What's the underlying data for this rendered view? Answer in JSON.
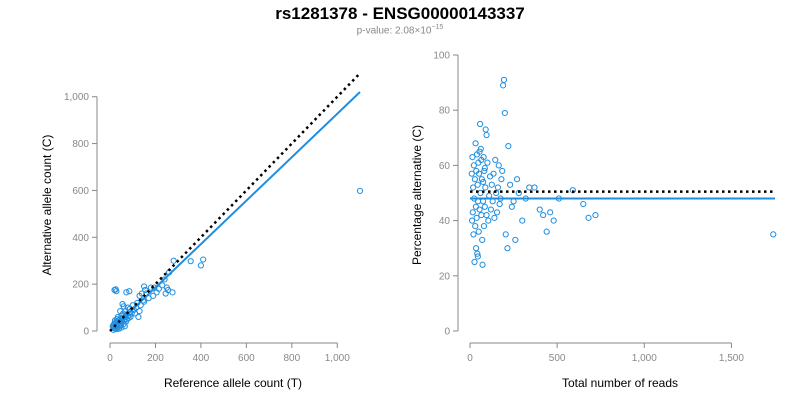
{
  "header": {
    "title": "rs1281378 - ENSG00000143337",
    "pvalue_prefix": "p-value: 2.08×10",
    "pvalue_exponent": "−15"
  },
  "colors": {
    "points": "#1f8ee0",
    "fit_line": "#1f8ee0",
    "reference_line": "#000000",
    "axis": "#888888"
  },
  "chart_data": [
    {
      "type": "scatter",
      "xlabel": "Reference allele count (T)",
      "ylabel": "Alternative allele count (C)",
      "xlim": [
        0,
        1100
      ],
      "ylim": [
        0,
        1050
      ],
      "xticks": [
        0,
        200,
        400,
        600,
        800,
        1000
      ],
      "xtick_labels": [
        "0",
        "200",
        "400",
        "600",
        "800",
        "1,000"
      ],
      "yticks": [
        0,
        200,
        400,
        600,
        800,
        1000
      ],
      "ytick_labels": [
        "0",
        "200",
        "400",
        "600",
        "800",
        "1,000"
      ],
      "grid": false,
      "fit_line": [
        [
          0,
          0
        ],
        [
          1100,
          1020
        ]
      ],
      "reference_line": [
        [
          0,
          0
        ],
        [
          1100,
          1100
        ]
      ],
      "points": [
        [
          1100,
          598
        ],
        [
          410,
          305
        ],
        [
          400,
          280
        ],
        [
          355,
          298
        ],
        [
          280,
          300
        ],
        [
          275,
          165
        ],
        [
          260,
          250
        ],
        [
          255,
          175
        ],
        [
          250,
          185
        ],
        [
          245,
          160
        ],
        [
          240,
          220
        ],
        [
          230,
          195
        ],
        [
          215,
          180
        ],
        [
          205,
          165
        ],
        [
          195,
          185
        ],
        [
          190,
          150
        ],
        [
          180,
          185
        ],
        [
          170,
          140
        ],
        [
          160,
          160
        ],
        [
          155,
          175
        ],
        [
          150,
          190
        ],
        [
          150,
          125
        ],
        [
          145,
          130
        ],
        [
          140,
          160
        ],
        [
          135,
          110
        ],
        [
          130,
          150
        ],
        [
          130,
          85
        ],
        [
          125,
          60
        ],
        [
          120,
          120
        ],
        [
          115,
          100
        ],
        [
          110,
          75
        ],
        [
          105,
          90
        ],
        [
          100,
          110
        ],
        [
          95,
          75
        ],
        [
          90,
          60
        ],
        [
          88,
          95
        ],
        [
          85,
          80
        ],
        [
          82,
          55
        ],
        [
          80,
          65
        ],
        [
          78,
          100
        ],
        [
          75,
          50
        ],
        [
          72,
          70
        ],
        [
          70,
          40
        ],
        [
          68,
          85
        ],
        [
          65,
          60
        ],
        [
          62,
          45
        ],
        [
          60,
          30
        ],
        [
          58,
          75
        ],
        [
          55,
          55
        ],
        [
          52,
          40
        ],
        [
          50,
          65
        ],
        [
          48,
          25
        ],
        [
          45,
          50
        ],
        [
          42,
          35
        ],
        [
          40,
          20
        ],
        [
          38,
          45
        ],
        [
          35,
          30
        ],
        [
          32,
          15
        ],
        [
          30,
          25
        ],
        [
          28,
          40
        ],
        [
          25,
          20
        ],
        [
          22,
          10
        ],
        [
          20,
          30
        ],
        [
          18,
          15
        ],
        [
          15,
          5
        ],
        [
          12,
          20
        ],
        [
          20,
          175
        ],
        [
          25,
          178
        ],
        [
          28,
          170
        ],
        [
          72,
          165
        ],
        [
          85,
          170
        ],
        [
          55,
          115
        ],
        [
          60,
          105
        ],
        [
          45,
          85
        ],
        [
          35,
          60
        ],
        [
          30,
          50
        ],
        [
          25,
          35
        ],
        [
          22,
          45
        ],
        [
          18,
          30
        ],
        [
          15,
          25
        ],
        [
          40,
          10
        ],
        [
          50,
          15
        ],
        [
          65,
          20
        ],
        [
          30,
          8
        ]
      ]
    },
    {
      "type": "scatter",
      "xlabel": "Total number of reads",
      "ylabel": "Percentage alternative (C)",
      "xlim": [
        0,
        1750
      ],
      "ylim": [
        0,
        100
      ],
      "xticks": [
        0,
        500,
        1000,
        1500
      ],
      "xtick_labels": [
        "0",
        "500",
        "1,000",
        "1,500"
      ],
      "yticks": [
        0,
        20,
        40,
        60,
        80,
        100
      ],
      "ytick_labels": [
        "0",
        "20",
        "40",
        "60",
        "80",
        "100"
      ],
      "grid": false,
      "fit_line": [
        [
          0,
          48
        ],
        [
          1750,
          48
        ]
      ],
      "reference_line": [
        [
          0,
          50.5
        ],
        [
          1750,
          50.5
        ]
      ],
      "points": [
        [
          1740,
          35
        ],
        [
          720,
          42
        ],
        [
          680,
          41
        ],
        [
          650,
          46
        ],
        [
          590,
          51
        ],
        [
          510,
          48
        ],
        [
          480,
          40
        ],
        [
          460,
          43
        ],
        [
          440,
          36
        ],
        [
          420,
          42
        ],
        [
          400,
          44
        ],
        [
          370,
          52
        ],
        [
          340,
          52
        ],
        [
          320,
          48
        ],
        [
          300,
          40
        ],
        [
          280,
          50
        ],
        [
          270,
          55
        ],
        [
          260,
          33
        ],
        [
          250,
          47
        ],
        [
          240,
          45
        ],
        [
          230,
          53
        ],
        [
          220,
          67
        ],
        [
          215,
          30
        ],
        [
          205,
          35
        ],
        [
          200,
          79
        ],
        [
          195,
          91
        ],
        [
          190,
          89
        ],
        [
          185,
          58
        ],
        [
          180,
          55
        ],
        [
          175,
          48
        ],
        [
          170,
          46
        ],
        [
          165,
          60
        ],
        [
          160,
          52
        ],
        [
          155,
          43
        ],
        [
          150,
          50
        ],
        [
          145,
          62
        ],
        [
          140,
          41
        ],
        [
          135,
          57
        ],
        [
          130,
          47
        ],
        [
          125,
          53
        ],
        [
          120,
          44
        ],
        [
          115,
          56
        ],
        [
          110,
          49
        ],
        [
          105,
          40
        ],
        [
          100,
          61
        ],
        [
          95,
          71
        ],
        [
          90,
          73
        ],
        [
          88,
          52
        ],
        [
          85,
          45
        ],
        [
          82,
          58
        ],
        [
          80,
          38
        ],
        [
          78,
          63
        ],
        [
          75,
          47
        ],
        [
          72,
          24
        ],
        [
          70,
          33
        ],
        [
          68,
          55
        ],
        [
          65,
          42
        ],
        [
          62,
          66
        ],
        [
          60,
          50
        ],
        [
          58,
          75
        ],
        [
          55,
          44
        ],
        [
          52,
          57
        ],
        [
          50,
          36
        ],
        [
          48,
          61
        ],
        [
          46,
          47
        ],
        [
          44,
          53
        ],
        [
          42,
          28
        ],
        [
          40,
          64
        ],
        [
          38,
          41
        ],
        [
          36,
          58
        ],
        [
          34,
          45
        ],
        [
          32,
          68
        ],
        [
          30,
          38
        ],
        [
          28,
          55
        ],
        [
          26,
          25
        ],
        [
          24,
          48
        ],
        [
          22,
          60
        ],
        [
          20,
          35
        ],
        [
          18,
          52
        ],
        [
          16,
          43
        ],
        [
          14,
          63
        ],
        [
          12,
          40
        ],
        [
          10,
          57
        ],
        [
          35,
          30
        ],
        [
          45,
          27
        ],
        [
          55,
          65
        ],
        [
          65,
          62
        ],
        [
          75,
          54
        ],
        [
          85,
          59
        ],
        [
          95,
          42
        ]
      ]
    }
  ]
}
